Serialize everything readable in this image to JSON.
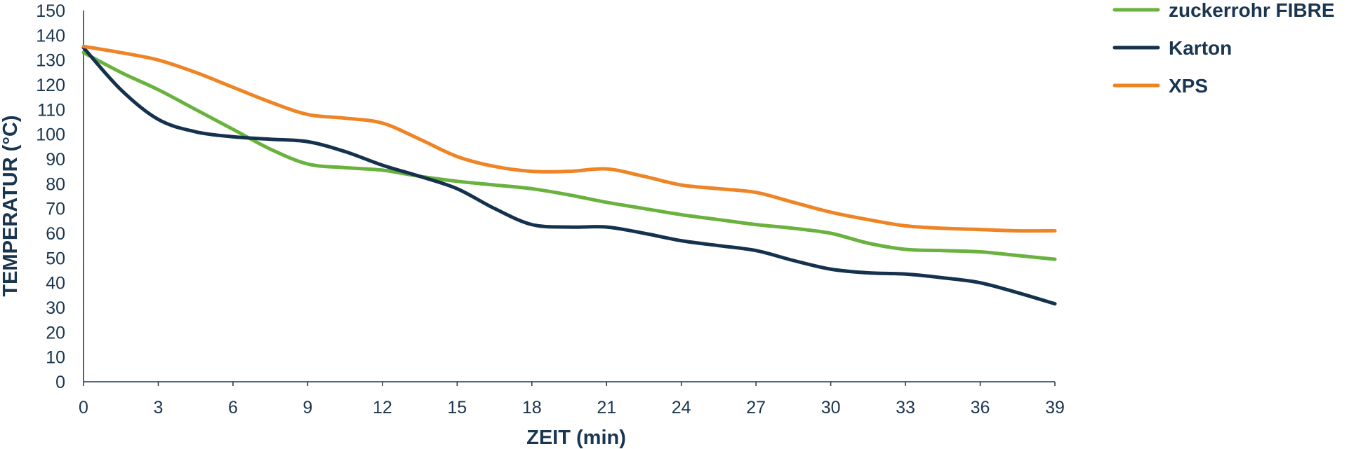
{
  "chart_data": {
    "type": "line",
    "xlabel": "ZEIT (min)",
    "ylabel": "TEMPERATUR (°C)",
    "xlim": [
      0,
      39
    ],
    "ylim": [
      0,
      150
    ],
    "x_ticks": [
      0,
      3,
      6,
      9,
      12,
      15,
      18,
      21,
      24,
      27,
      30,
      33,
      36,
      39
    ],
    "y_ticks": [
      0,
      10,
      20,
      30,
      40,
      50,
      60,
      70,
      80,
      90,
      100,
      110,
      120,
      130,
      140,
      150
    ],
    "grid": false,
    "legend_position": "top-right",
    "x": [
      0,
      1.5,
      3,
      4.5,
      6,
      7.5,
      9,
      10.5,
      12,
      13.5,
      15,
      16.5,
      18,
      19.5,
      21,
      22.5,
      24,
      25.5,
      27,
      28.5,
      30,
      31.5,
      33,
      34.5,
      36,
      37.5,
      39
    ],
    "series": [
      {
        "name": "zuckerrohr FIBRE",
        "color": "#6ab23e",
        "values": [
          133,
          125,
          118,
          110,
          102,
          94,
          88,
          86.5,
          85.5,
          83,
          81,
          79.5,
          78,
          75.5,
          72.5,
          70,
          67.5,
          65.5,
          63.5,
          62,
          60,
          56,
          53.5,
          53,
          52.5,
          51,
          49.5
        ]
      },
      {
        "name": "Karton",
        "color": "#14324e",
        "values": [
          135,
          118,
          106,
          101,
          99,
          98,
          97,
          93,
          87.5,
          83,
          78,
          70,
          63.5,
          62.5,
          62.5,
          60,
          57,
          55,
          53,
          49,
          45.5,
          44,
          43.5,
          42,
          40,
          36,
          31.5
        ]
      },
      {
        "name": "XPS",
        "color": "#ee8424",
        "values": [
          135.5,
          133,
          130,
          125,
          119,
          113,
          108,
          106.5,
          104.5,
          98,
          91,
          87,
          85,
          85,
          86,
          83,
          79.5,
          78,
          76.5,
          72.5,
          68.5,
          65.5,
          63,
          62,
          61.5,
          61,
          61
        ]
      }
    ]
  }
}
